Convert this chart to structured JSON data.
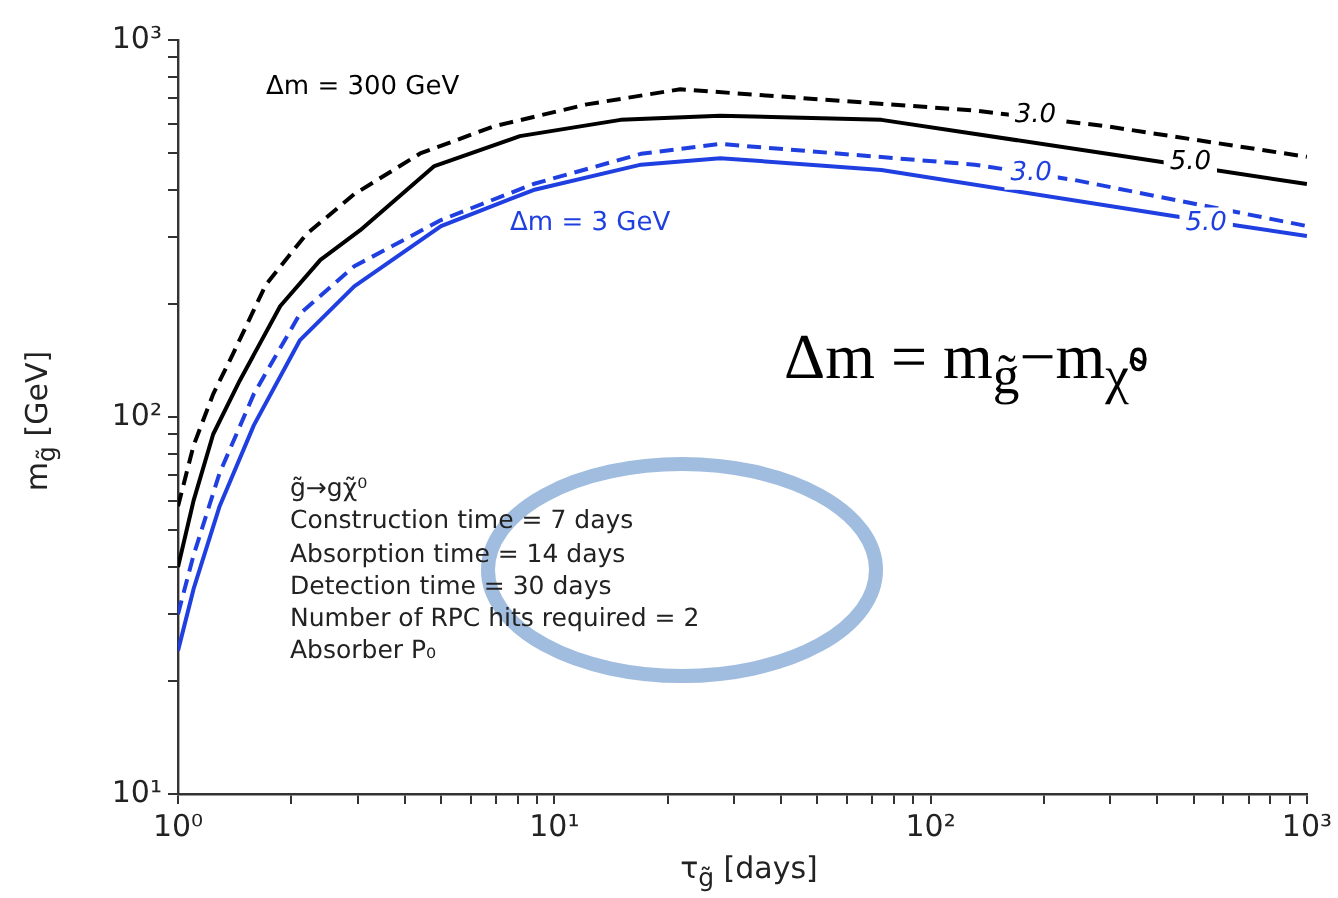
{
  "chart_data": {
    "type": "line",
    "xlabel": "τ$_{g̃}$ [days]",
    "ylabel": "m$_{g̃}$ [GeV]",
    "log": "xy",
    "grid": false,
    "legend": false,
    "marker": "none",
    "xlim": [
      1,
      1000
    ],
    "ylim": [
      10,
      1000
    ],
    "xticks": [
      {
        "value": 1,
        "label": "10⁰"
      },
      {
        "value": 2,
        "label": null
      },
      {
        "value": 3,
        "label": null
      },
      {
        "value": 4,
        "label": null
      },
      {
        "value": 5,
        "label": null
      },
      {
        "value": 6,
        "label": null
      },
      {
        "value": 7,
        "label": null
      },
      {
        "value": 8,
        "label": null
      },
      {
        "value": 9,
        "label": null
      },
      {
        "value": 10,
        "label": "10¹"
      },
      {
        "value": 20,
        "label": null
      },
      {
        "value": 30,
        "label": null
      },
      {
        "value": 40,
        "label": null
      },
      {
        "value": 50,
        "label": null
      },
      {
        "value": 60,
        "label": null
      },
      {
        "value": 70,
        "label": null
      },
      {
        "value": 80,
        "label": null
      },
      {
        "value": 90,
        "label": null
      },
      {
        "value": 100,
        "label": "10²"
      },
      {
        "value": 200,
        "label": null
      },
      {
        "value": 300,
        "label": null
      },
      {
        "value": 400,
        "label": null
      },
      {
        "value": 500,
        "label": null
      },
      {
        "value": 600,
        "label": null
      },
      {
        "value": 700,
        "label": null
      },
      {
        "value": 800,
        "label": null
      },
      {
        "value": 900,
        "label": null
      },
      {
        "value": 1000,
        "label": "10³"
      }
    ],
    "yticks": [
      {
        "value": 10,
        "label": "10¹"
      },
      {
        "value": 20,
        "label": null
      },
      {
        "value": 30,
        "label": null
      },
      {
        "value": 40,
        "label": null
      },
      {
        "value": 50,
        "label": null
      },
      {
        "value": 60,
        "label": null
      },
      {
        "value": 70,
        "label": null
      },
      {
        "value": 80,
        "label": null
      },
      {
        "value": 90,
        "label": null
      },
      {
        "value": 100,
        "label": "10²"
      },
      {
        "value": 200,
        "label": null
      },
      {
        "value": 300,
        "label": null
      },
      {
        "value": 400,
        "label": null
      },
      {
        "value": 500,
        "label": null
      },
      {
        "value": 600,
        "label": null
      },
      {
        "value": 700,
        "label": null
      },
      {
        "value": 800,
        "label": null
      },
      {
        "value": 900,
        "label": null
      },
      {
        "value": 1000,
        "label": "10³"
      }
    ],
    "series": [
      {
        "color": "#000000",
        "line_style": "dashed",
        "x": [
          1,
          1.1,
          1.24,
          1.4,
          1.71,
          2.19,
          2.94,
          4.4,
          6.9,
          12.2,
          21.6,
          131,
          295,
          1000
        ],
        "values": [
          58,
          84,
          115,
          147,
          224,
          305,
          390,
          500,
          590,
          675,
          740,
          650,
          590,
          490
        ]
      },
      {
        "color": "#000000",
        "line_style": "solid",
        "x": [
          1,
          1.1,
          1.24,
          1.46,
          1.87,
          2.39,
          3.05,
          4.8,
          8.1,
          15,
          27.6,
          74,
          333,
          1000
        ],
        "values": [
          40,
          60,
          90,
          125,
          197,
          261,
          313,
          463,
          556,
          614,
          630,
          614,
          490,
          415
        ]
      },
      {
        "color": "#1f3fe0",
        "line_style": "dashed",
        "x": [
          1,
          1.1,
          1.29,
          1.59,
          2.11,
          2.94,
          5,
          8.8,
          17,
          27.6,
          131,
          242,
          1000
        ],
        "values": [
          30,
          43,
          71,
          115,
          188,
          251,
          333,
          415,
          499,
          530,
          467,
          425,
          321
        ]
      },
      {
        "color": "#1f3fe0",
        "line_style": "solid",
        "x": [
          1,
          1.1,
          1.29,
          1.59,
          2.11,
          2.94,
          5,
          8.8,
          17,
          27.6,
          74,
          446,
          1000
        ],
        "values": [
          24,
          35,
          58,
          95,
          160,
          222,
          321,
          400,
          467,
          486,
          452,
          341,
          302
        ]
      }
    ],
    "annotations": [
      "Δm = 300 GeV",
      "Δm = 3 GeV",
      {
        "text": "3.0",
        "x": 190,
        "y": 630
      },
      {
        "text": "5.0",
        "x": 490,
        "y": 475
      },
      {
        "text": "3.0",
        "x": 185,
        "y": 442
      },
      {
        "text": "5.0",
        "x": 540,
        "y": 326
      },
      "Δm = m$_{g̃}$−m$_{χ̃⁰}$",
      "g̃→gχ̃⁰",
      "Construction time = 7 days",
      "Absorption time = 14 days",
      "Detection time = 30 days",
      "Number of RPC hits required = 2",
      "Absorber P₀"
    ]
  }
}
